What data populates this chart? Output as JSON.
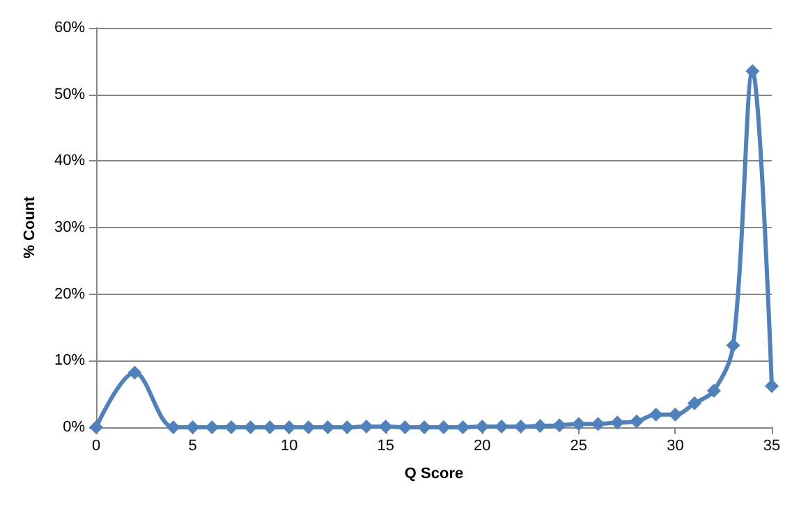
{
  "chart_data": {
    "type": "line",
    "xlabel": "Q Score",
    "ylabel": "% Count",
    "x": [
      0,
      2,
      4,
      5,
      6,
      7,
      8,
      9,
      10,
      11,
      12,
      13,
      14,
      15,
      16,
      17,
      18,
      19,
      20,
      21,
      22,
      23,
      24,
      25,
      26,
      27,
      28,
      29,
      30,
      31,
      32,
      33,
      34,
      35
    ],
    "series": [
      {
        "color": "#4f81bd",
        "values": [
          0,
          8.2,
          0,
          0,
          0,
          0,
          0,
          0,
          0,
          0,
          0,
          0,
          0.1,
          0.1,
          0,
          0,
          0,
          0,
          0.1,
          0.1,
          0.1,
          0.2,
          0.3,
          0.5,
          0.5,
          0.7,
          0.9,
          1.9,
          1.9,
          3.6,
          5.5,
          12.3,
          53.5,
          6.2
        ]
      }
    ],
    "xlim": [
      0,
      35
    ],
    "xticks": [
      0,
      5,
      10,
      15,
      20,
      25,
      30,
      35
    ],
    "ylim": [
      0,
      60
    ],
    "yticks": [
      {
        "value": 0,
        "label": "0%"
      },
      {
        "value": 10,
        "label": "10%"
      },
      {
        "value": 20,
        "label": "20%"
      },
      {
        "value": 30,
        "label": "30%"
      },
      {
        "value": 40,
        "label": "40%"
      },
      {
        "value": 50,
        "label": "50%"
      },
      {
        "value": 60,
        "label": "60%"
      }
    ],
    "grid": "y",
    "marker": "diamond",
    "line_style": "solid"
  }
}
